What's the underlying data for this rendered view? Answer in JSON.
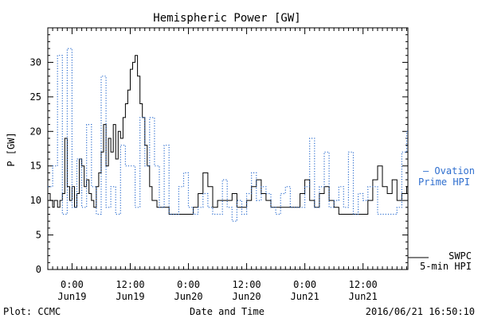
{
  "chart_data": {
    "type": "line",
    "title": "Hemispheric Power [GW]",
    "xlabel": "Date and Time",
    "ylabel": "P [GW]",
    "ylim": [
      0,
      35
    ],
    "xlim": [
      "2016-06-18T19:00",
      "2016-06-21T21:15"
    ],
    "y_ticks": [
      0,
      5,
      10,
      15,
      20,
      25,
      30
    ],
    "x_ticks": [
      {
        "time": "2016-06-19T00:00",
        "label1": "0:00",
        "label2": "Jun19"
      },
      {
        "time": "2016-06-19T12:00",
        "label1": "12:00",
        "label2": "Jun19"
      },
      {
        "time": "2016-06-20T00:00",
        "label1": "0:00",
        "label2": "Jun20"
      },
      {
        "time": "2016-06-20T12:00",
        "label1": "12:00",
        "label2": "Jun20"
      },
      {
        "time": "2016-06-21T00:00",
        "label1": "0:00",
        "label2": "Jun21"
      },
      {
        "time": "2016-06-21T12:00",
        "label1": "12:00",
        "label2": "Jun21"
      }
    ],
    "grid": false,
    "legend_position": "right",
    "series": [
      {
        "name": "SWPC 5-min HPI",
        "legend_line1": "SWPC",
        "legend_line2": "5-min HPI",
        "color": "#000000",
        "style": "solid",
        "x": [
          "2016-06-18T19:00",
          "2016-06-18T19:30",
          "2016-06-18T20:00",
          "2016-06-18T20:20",
          "2016-06-18T21:00",
          "2016-06-18T21:30",
          "2016-06-18T22:00",
          "2016-06-18T22:30",
          "2016-06-18T23:00",
          "2016-06-18T23:30",
          "2016-06-19T00:00",
          "2016-06-19T00:30",
          "2016-06-19T01:00",
          "2016-06-19T01:30",
          "2016-06-19T02:00",
          "2016-06-19T02:30",
          "2016-06-19T03:00",
          "2016-06-19T03:30",
          "2016-06-19T04:00",
          "2016-06-19T04:30",
          "2016-06-19T05:00",
          "2016-06-19T05:30",
          "2016-06-19T06:00",
          "2016-06-19T06:30",
          "2016-06-19T07:00",
          "2016-06-19T07:30",
          "2016-06-19T08:00",
          "2016-06-19T08:30",
          "2016-06-19T09:00",
          "2016-06-19T09:30",
          "2016-06-19T10:00",
          "2016-06-19T10:30",
          "2016-06-19T11:00",
          "2016-06-19T11:30",
          "2016-06-19T12:00",
          "2016-06-19T12:30",
          "2016-06-19T13:00",
          "2016-06-19T13:30",
          "2016-06-19T14:00",
          "2016-06-19T14:30",
          "2016-06-19T15:00",
          "2016-06-19T15:30",
          "2016-06-19T16:00",
          "2016-06-19T16:30",
          "2016-06-19T17:00",
          "2016-06-19T17:30",
          "2016-06-19T18:00",
          "2016-06-19T18:30",
          "2016-06-19T19:00",
          "2016-06-19T20:00",
          "2016-06-19T21:00",
          "2016-06-19T22:00",
          "2016-06-19T23:00",
          "2016-06-20T00:00",
          "2016-06-20T01:00",
          "2016-06-20T02:00",
          "2016-06-20T03:00",
          "2016-06-20T04:00",
          "2016-06-20T05:00",
          "2016-06-20T06:00",
          "2016-06-20T07:00",
          "2016-06-20T08:00",
          "2016-06-20T09:00",
          "2016-06-20T10:00",
          "2016-06-20T11:00",
          "2016-06-20T12:00",
          "2016-06-20T13:00",
          "2016-06-20T14:00",
          "2016-06-20T15:00",
          "2016-06-20T16:00",
          "2016-06-20T17:00",
          "2016-06-20T18:00",
          "2016-06-20T19:00",
          "2016-06-20T20:00",
          "2016-06-20T21:00",
          "2016-06-20T22:00",
          "2016-06-20T23:00",
          "2016-06-21T00:00",
          "2016-06-21T01:00",
          "2016-06-21T02:00",
          "2016-06-21T03:00",
          "2016-06-21T04:00",
          "2016-06-21T05:00",
          "2016-06-21T06:00",
          "2016-06-21T07:00",
          "2016-06-21T08:00",
          "2016-06-21T09:00",
          "2016-06-21T10:00",
          "2016-06-21T11:00",
          "2016-06-21T12:00",
          "2016-06-21T13:00",
          "2016-06-21T14:00",
          "2016-06-21T15:00",
          "2016-06-21T16:00",
          "2016-06-21T17:00",
          "2016-06-21T18:00",
          "2016-06-21T19:00",
          "2016-06-21T20:00",
          "2016-06-21T21:00"
        ],
        "y": [
          11,
          10,
          9,
          10,
          9,
          10,
          11,
          19,
          12,
          10,
          12,
          9,
          11,
          16,
          15,
          12,
          13,
          11,
          10,
          9,
          12,
          14,
          17,
          21,
          15,
          19,
          17,
          21,
          16,
          20,
          19,
          22,
          24,
          26,
          29,
          30,
          31,
          28,
          24,
          22,
          18,
          15,
          12,
          10,
          10,
          9,
          9,
          9,
          9,
          8,
          8,
          8,
          8,
          8,
          9,
          11,
          14,
          12,
          9,
          10,
          10,
          10,
          11,
          9,
          9,
          10,
          12,
          13,
          11,
          10,
          9,
          9,
          9,
          9,
          9,
          9,
          11,
          13,
          10,
          9,
          11,
          12,
          10,
          9,
          8,
          8,
          8,
          8,
          8,
          8,
          10,
          13,
          15,
          12,
          11,
          13,
          10,
          11,
          12
        ]
      },
      {
        "name": "Ovation Prime HPI",
        "legend_line1": "— Ovation",
        "legend_line2": "Prime HPI",
        "color": "#2f6fcf",
        "style": "dotted",
        "x": [
          "2016-06-18T19:00",
          "2016-06-18T20:00",
          "2016-06-18T21:00",
          "2016-06-18T22:00",
          "2016-06-18T23:00",
          "2016-06-19T00:00",
          "2016-06-19T01:00",
          "2016-06-19T02:00",
          "2016-06-19T03:00",
          "2016-06-19T04:00",
          "2016-06-19T05:00",
          "2016-06-19T06:00",
          "2016-06-19T07:00",
          "2016-06-19T08:00",
          "2016-06-19T09:00",
          "2016-06-19T10:00",
          "2016-06-19T11:00",
          "2016-06-19T12:00",
          "2016-06-19T13:00",
          "2016-06-19T14:00",
          "2016-06-19T15:00",
          "2016-06-19T16:00",
          "2016-06-19T17:00",
          "2016-06-19T18:00",
          "2016-06-19T19:00",
          "2016-06-19T20:00",
          "2016-06-19T21:00",
          "2016-06-19T22:00",
          "2016-06-19T23:00",
          "2016-06-20T00:00",
          "2016-06-20T01:00",
          "2016-06-20T02:00",
          "2016-06-20T03:00",
          "2016-06-20T04:00",
          "2016-06-20T05:00",
          "2016-06-20T06:00",
          "2016-06-20T07:00",
          "2016-06-20T08:00",
          "2016-06-20T09:00",
          "2016-06-20T10:00",
          "2016-06-20T11:00",
          "2016-06-20T12:00",
          "2016-06-20T13:00",
          "2016-06-20T14:00",
          "2016-06-20T15:00",
          "2016-06-20T16:00",
          "2016-06-20T17:00",
          "2016-06-20T18:00",
          "2016-06-20T19:00",
          "2016-06-20T20:00",
          "2016-06-20T21:00",
          "2016-06-20T22:00",
          "2016-06-20T23:00",
          "2016-06-21T00:00",
          "2016-06-21T01:00",
          "2016-06-21T02:00",
          "2016-06-21T03:00",
          "2016-06-21T04:00",
          "2016-06-21T05:00",
          "2016-06-21T06:00",
          "2016-06-21T07:00",
          "2016-06-21T08:00",
          "2016-06-21T09:00",
          "2016-06-21T10:00",
          "2016-06-21T11:00",
          "2016-06-21T12:00",
          "2016-06-21T13:00",
          "2016-06-21T14:00",
          "2016-06-21T15:00",
          "2016-06-21T16:00",
          "2016-06-21T17:00",
          "2016-06-21T18:00",
          "2016-06-21T19:00",
          "2016-06-21T20:00",
          "2016-06-21T21:00"
        ],
        "y": [
          12,
          15,
          31,
          8,
          32,
          9,
          16,
          9,
          21,
          12,
          8,
          28,
          9,
          12,
          8,
          18,
          15,
          15,
          9,
          22,
          15,
          22,
          15,
          9,
          18,
          8,
          8,
          12,
          14,
          9,
          8,
          9,
          11,
          9,
          8,
          8,
          13,
          9,
          7,
          10,
          8,
          11,
          14,
          10,
          12,
          11,
          9,
          8,
          11,
          12,
          9,
          9,
          9,
          12,
          19,
          9,
          12,
          17,
          9,
          10,
          12,
          9,
          17,
          8,
          11,
          10,
          12,
          12,
          8,
          8,
          8,
          8,
          9,
          17,
          20
        ]
      }
    ],
    "footer_left": "Plot: CCMC",
    "footer_right": "2016/06/21 16:50:10"
  }
}
